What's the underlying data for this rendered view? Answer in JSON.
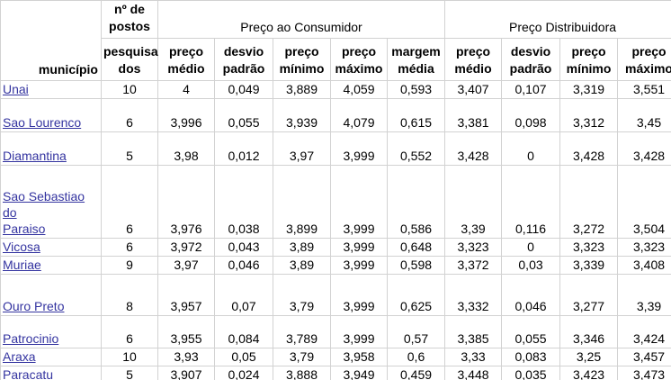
{
  "colors": {
    "link": "#3434a0",
    "gridline": "#d2d2d2",
    "text": "#000000",
    "background": "#ffffff"
  },
  "header": {
    "municipio": "município",
    "postos_top": "nº de postos",
    "postos_bottom": "pesquisa dos",
    "group_consumer": "Preço ao Consumidor",
    "group_distributor": "Preço Distribuidora",
    "consumer_cols": [
      "preço médio",
      "desvio padrão",
      "preço mínimo",
      "preço máximo",
      "margem média"
    ],
    "distributor_cols": [
      "preço médio",
      "desvio padrão",
      "preço mínimo",
      "preço máximo"
    ]
  },
  "rows": [
    {
      "name": "Unai",
      "values": [
        "10",
        "4",
        "0,049",
        "3,889",
        "4,059",
        "0,593",
        "3,407",
        "0,107",
        "3,319",
        "3,551"
      ]
    },
    {
      "name": "Sao Lourenco",
      "values": [
        "6",
        "3,996",
        "0,055",
        "3,939",
        "4,079",
        "0,615",
        "3,381",
        "0,098",
        "3,312",
        "3,45"
      ]
    },
    {
      "name": "Diamantina",
      "values": [
        "5",
        "3,98",
        "0,012",
        "3,97",
        "3,999",
        "0,552",
        "3,428",
        "0",
        "3,428",
        "3,428"
      ]
    },
    {
      "name": "Sao Sebastiao do \nParaiso",
      "values": [
        "6",
        "3,976",
        "0,038",
        "3,899",
        "3,999",
        "0,586",
        "3,39",
        "0,116",
        "3,272",
        "3,504"
      ]
    },
    {
      "name": "Vicosa",
      "values": [
        "6",
        "3,972",
        "0,043",
        "3,89",
        "3,999",
        "0,648",
        "3,323",
        "0",
        "3,323",
        "3,323"
      ]
    },
    {
      "name": "Muriae",
      "values": [
        "9",
        "3,97",
        "0,046",
        "3,89",
        "3,999",
        "0,598",
        "3,372",
        "0,03",
        "3,339",
        "3,408"
      ]
    },
    {
      "name": "Ouro Preto",
      "values": [
        "8",
        "3,957",
        "0,07",
        "3,79",
        "3,999",
        "0,625",
        "3,332",
        "0,046",
        "3,277",
        "3,39"
      ]
    },
    {
      "name": "Patrocinio",
      "values": [
        "6",
        "3,955",
        "0,084",
        "3,789",
        "3,999",
        "0,57",
        "3,385",
        "0,055",
        "3,346",
        "3,424"
      ]
    },
    {
      "name": "Araxa",
      "values": [
        "10",
        "3,93",
        "0,05",
        "3,79",
        "3,958",
        "0,6",
        "3,33",
        "0,083",
        "3,25",
        "3,457"
      ]
    },
    {
      "name": "Paracatu",
      "values": [
        "5",
        "3,907",
        "0,024",
        "3,888",
        "3,949",
        "0,459",
        "3,448",
        "0,035",
        "3,423",
        "3,473"
      ]
    }
  ]
}
